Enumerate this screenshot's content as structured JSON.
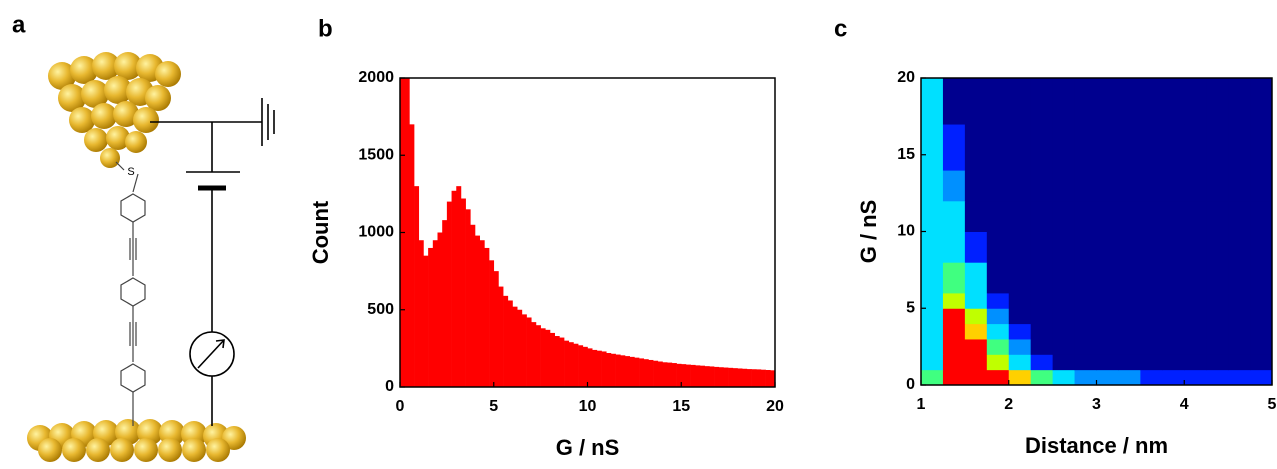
{
  "schematic": {
    "panel_label": "a",
    "atom_label": "S"
  },
  "chart_data": [
    {
      "type": "histogram",
      "panel_label": "b",
      "x_label": "G / nS",
      "y_label": "Count",
      "color": "#ff0000",
      "bins": [
        0,
        0.25,
        0.5,
        0.75,
        1,
        1.25,
        1.5,
        1.75,
        2,
        2.25,
        2.5,
        2.75,
        3,
        3.25,
        3.5,
        3.75,
        4,
        4.25,
        4.5,
        4.75,
        5,
        5.25,
        5.5,
        5.75,
        6,
        6.25,
        6.5,
        6.75,
        7,
        7.25,
        7.5,
        7.75,
        8,
        8.25,
        8.5,
        8.75,
        9,
        9.25,
        9.5,
        9.75,
        10,
        10.25,
        10.5,
        10.75,
        11,
        11.25,
        11.5,
        11.75,
        12,
        12.25,
        12.5,
        12.75,
        13,
        13.25,
        13.5,
        13.75,
        14,
        14.25,
        14.5,
        14.75,
        15,
        15.25,
        15.5,
        15.75,
        16,
        16.25,
        16.5,
        16.75,
        17,
        17.25,
        17.5,
        17.75,
        18,
        18.25,
        18.5,
        18.75,
        19,
        19.25,
        19.5,
        19.75,
        20
      ],
      "values": [
        2000,
        2000,
        1700,
        1300,
        950,
        850,
        900,
        950,
        1000,
        1080,
        1200,
        1270,
        1300,
        1220,
        1150,
        1050,
        980,
        950,
        900,
        820,
        750,
        650,
        590,
        560,
        520,
        500,
        470,
        450,
        420,
        400,
        380,
        370,
        350,
        330,
        320,
        300,
        290,
        280,
        270,
        260,
        250,
        240,
        235,
        230,
        220,
        215,
        210,
        205,
        200,
        195,
        190,
        185,
        180,
        175,
        170,
        165,
        160,
        158,
        155,
        150,
        148,
        145,
        143,
        140,
        138,
        135,
        133,
        130,
        128,
        126,
        124,
        122,
        120,
        118,
        116,
        115,
        114,
        112,
        110,
        108
      ],
      "xlim": [
        0,
        20
      ],
      "xticks": [
        0,
        5,
        10,
        15,
        20
      ],
      "ylim": [
        0,
        2000
      ],
      "yticks": [
        0,
        500,
        1000,
        1500,
        2000
      ]
    },
    {
      "type": "heatmap",
      "panel_label": "c",
      "x_label": "Distance / nm",
      "y_label": "G / nS",
      "x_edges": [
        1,
        1.25,
        1.5,
        1.75,
        2,
        2.25,
        2.5,
        2.75,
        3,
        3.25,
        3.5,
        3.75,
        4,
        4.25,
        4.5,
        4.75,
        5
      ],
      "y_edges": [
        0,
        1,
        2,
        3,
        4,
        5,
        6,
        8,
        10,
        12,
        14,
        17,
        20
      ],
      "z": [
        [
          0.5,
          0.9,
          0.9,
          0.8,
          0.7,
          0.5,
          0.3,
          0.25,
          0.2,
          0.2,
          0.15,
          0.15,
          0.15,
          0.15,
          0.15,
          0.15
        ],
        [
          0.4,
          0.9,
          0.85,
          0.6,
          0.35,
          0.15,
          0.05,
          0,
          0,
          0,
          0,
          0,
          0,
          0,
          0,
          0
        ],
        [
          0.4,
          0.95,
          0.8,
          0.5,
          0.2,
          0.05,
          0,
          0,
          0,
          0,
          0,
          0,
          0,
          0,
          0,
          0
        ],
        [
          0.35,
          0.9,
          0.7,
          0.35,
          0.1,
          0,
          0,
          0,
          0,
          0,
          0,
          0,
          0,
          0,
          0,
          0
        ],
        [
          0.35,
          0.85,
          0.55,
          0.25,
          0.05,
          0,
          0,
          0,
          0,
          0,
          0,
          0,
          0,
          0,
          0,
          0
        ],
        [
          0.35,
          0.6,
          0.4,
          0.15,
          0,
          0,
          0,
          0,
          0,
          0,
          0,
          0,
          0,
          0,
          0,
          0
        ],
        [
          0.35,
          0.45,
          0.3,
          0.08,
          0,
          0,
          0,
          0,
          0,
          0,
          0,
          0,
          0,
          0,
          0,
          0
        ],
        [
          0.35,
          0.4,
          0.15,
          0.03,
          0,
          0,
          0,
          0,
          0,
          0,
          0,
          0,
          0,
          0,
          0,
          0
        ],
        [
          0.35,
          0.35,
          0.08,
          0,
          0,
          0,
          0,
          0,
          0,
          0,
          0,
          0,
          0,
          0,
          0,
          0
        ],
        [
          0.35,
          0.25,
          0.03,
          0,
          0,
          0,
          0,
          0,
          0,
          0,
          0,
          0,
          0,
          0,
          0,
          0
        ],
        [
          0.3,
          0.15,
          0,
          0,
          0,
          0,
          0,
          0,
          0,
          0,
          0,
          0,
          0,
          0,
          0,
          0
        ],
        [
          0.3,
          0.08,
          0,
          0,
          0,
          0,
          0,
          0,
          0,
          0,
          0,
          0,
          0,
          0,
          0,
          0
        ]
      ],
      "levels": [
        0,
        0.1,
        0.2,
        0.3,
        0.45,
        0.55,
        0.65,
        0.75
      ],
      "colors": [
        "#00008f",
        "#0020ff",
        "#0090ff",
        "#00e0ff",
        "#40ff80",
        "#c0ff00",
        "#ffd000",
        "#ff0000"
      ],
      "xlim": [
        1,
        5
      ],
      "xticks": [
        1,
        2,
        3,
        4,
        5
      ],
      "ylim": [
        0,
        20
      ],
      "yticks": [
        0,
        5,
        10,
        15,
        20
      ]
    }
  ]
}
